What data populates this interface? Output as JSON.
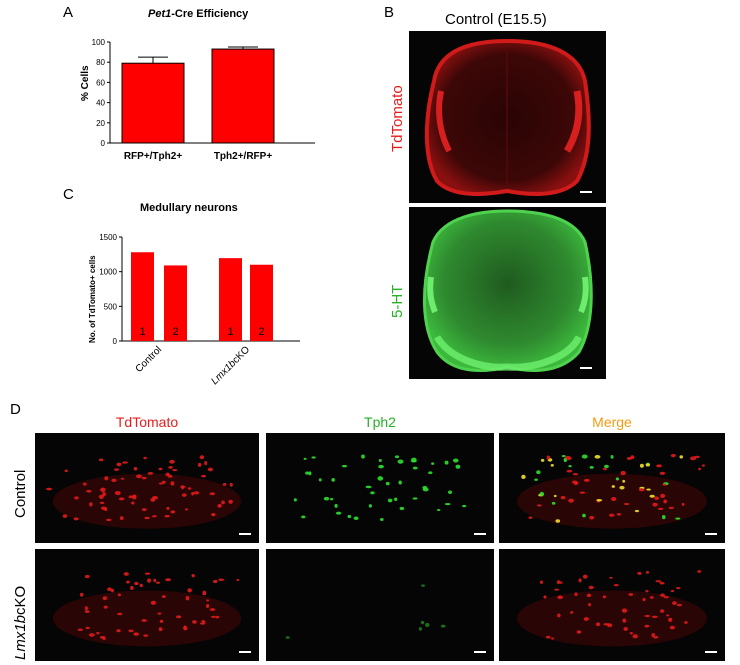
{
  "panels": {
    "A": {
      "letter": "A",
      "title_italic": "Pet1",
      "title_rest": "-Cre Efficiency",
      "chart_data": {
        "type": "bar",
        "categories": [
          "RFP+/Tph2+",
          "Tph2+/RFP+"
        ],
        "values": [
          79,
          93
        ],
        "errors": [
          6,
          2
        ],
        "ylabel": "% Cells",
        "ylim": [
          0,
          100
        ],
        "yticks": [
          "0",
          "20",
          "40",
          "60",
          "80",
          "100"
        ],
        "color": "#ff0000"
      }
    },
    "B": {
      "letter": "B",
      "title": "Control (E15.5)",
      "top_label": "TdTomato",
      "bottom_label": "5-HT",
      "top_color": "#e81c1c",
      "bottom_color": "#25b325"
    },
    "C": {
      "letter": "C",
      "chart_data": {
        "type": "bar",
        "title": "Medullary neurons",
        "ylabel": "No. of TdTomato+ cells",
        "ylim": [
          0,
          1500
        ],
        "yticks": [
          "0",
          "500",
          "1000",
          "1500"
        ],
        "groups": [
          "Control",
          "Lmx1bcKO"
        ],
        "group_italic": "Lmx1b",
        "group_suffix": "cKO",
        "bar_labels": [
          "1",
          "2",
          "1",
          "2"
        ],
        "values": [
          1280,
          1090,
          1195,
          1100
        ],
        "color": "#ff0000"
      }
    },
    "D": {
      "letter": "D",
      "columns": [
        "TdTomato",
        "Tph2",
        "Merge"
      ],
      "column_colors": [
        "#e81c1c",
        "#25b325",
        "#f39c12"
      ],
      "rows": [
        "Control",
        "Lmx1bcKO"
      ],
      "row_italic": "Lmx1b",
      "row_suffix": "cKO"
    }
  }
}
